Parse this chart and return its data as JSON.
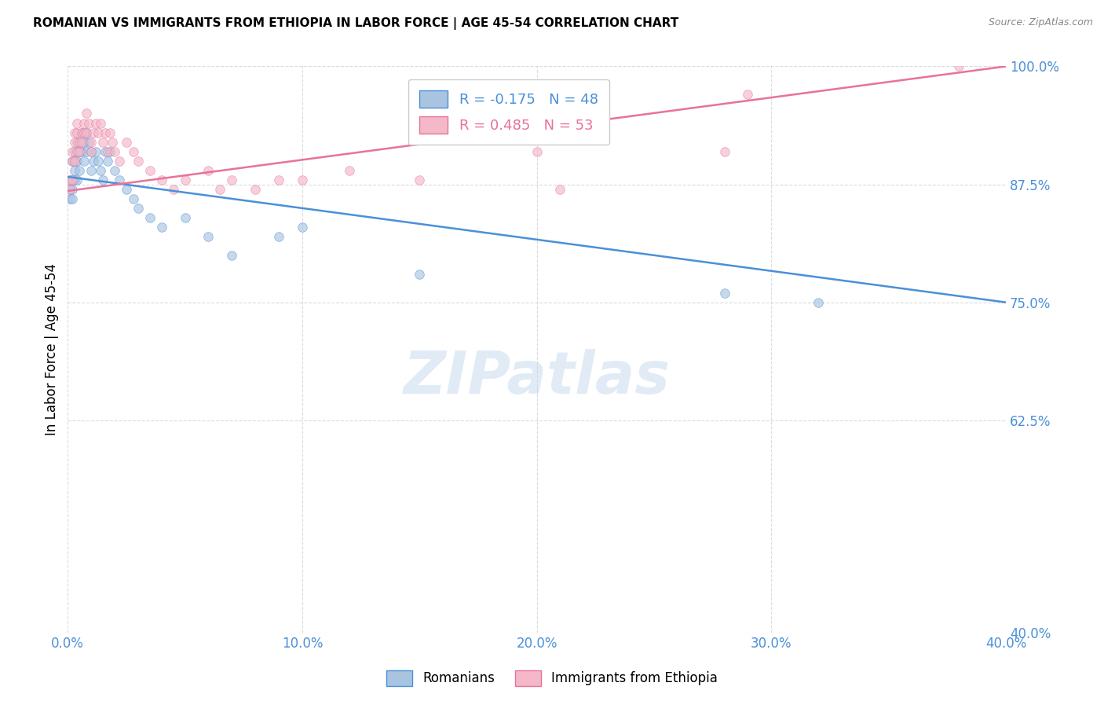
{
  "title": "ROMANIAN VS IMMIGRANTS FROM ETHIOPIA IN LABOR FORCE | AGE 45-54 CORRELATION CHART",
  "source": "Source: ZipAtlas.com",
  "ylabel": "In Labor Force | Age 45-54",
  "xlim": [
    0.0,
    0.4
  ],
  "ylim": [
    0.4,
    1.0
  ],
  "yticks": [
    0.4,
    0.625,
    0.75,
    0.875,
    1.0
  ],
  "xticks": [
    0.0,
    0.1,
    0.2,
    0.3,
    0.4
  ],
  "watermark": "ZIPatlas",
  "blue_color": "#4a90d9",
  "pink_color": "#e8729a",
  "blue_scatter_color": "#a8c4e0",
  "pink_scatter_color": "#f4b8c8",
  "scatter_alpha": 0.65,
  "scatter_size": 70,
  "R_rom": -0.175,
  "N_rom": 48,
  "R_eth": 0.485,
  "N_eth": 53,
  "rom_line_x": [
    0.0,
    0.4
  ],
  "rom_line_y": [
    0.883,
    0.75
  ],
  "eth_line_x": [
    0.0,
    0.4
  ],
  "eth_line_y": [
    0.868,
    1.0
  ],
  "romanian_x": [
    0.001,
    0.001,
    0.001,
    0.002,
    0.002,
    0.002,
    0.002,
    0.003,
    0.003,
    0.003,
    0.003,
    0.004,
    0.004,
    0.004,
    0.005,
    0.005,
    0.006,
    0.006,
    0.007,
    0.007,
    0.008,
    0.008,
    0.009,
    0.01,
    0.01,
    0.011,
    0.012,
    0.013,
    0.014,
    0.015,
    0.016,
    0.017,
    0.018,
    0.02,
    0.022,
    0.025,
    0.028,
    0.03,
    0.035,
    0.04,
    0.05,
    0.06,
    0.07,
    0.09,
    0.1,
    0.15,
    0.28,
    0.32
  ],
  "romanian_y": [
    0.88,
    0.87,
    0.86,
    0.9,
    0.88,
    0.87,
    0.86,
    0.91,
    0.9,
    0.89,
    0.88,
    0.92,
    0.9,
    0.88,
    0.91,
    0.89,
    0.93,
    0.91,
    0.92,
    0.9,
    0.93,
    0.91,
    0.92,
    0.91,
    0.89,
    0.9,
    0.91,
    0.9,
    0.89,
    0.88,
    0.91,
    0.9,
    0.91,
    0.89,
    0.88,
    0.87,
    0.86,
    0.85,
    0.84,
    0.83,
    0.84,
    0.82,
    0.8,
    0.82,
    0.83,
    0.78,
    0.76,
    0.75
  ],
  "ethiopia_x": [
    0.001,
    0.001,
    0.002,
    0.002,
    0.002,
    0.003,
    0.003,
    0.003,
    0.004,
    0.004,
    0.004,
    0.005,
    0.005,
    0.006,
    0.006,
    0.007,
    0.007,
    0.008,
    0.008,
    0.009,
    0.01,
    0.01,
    0.011,
    0.012,
    0.013,
    0.014,
    0.015,
    0.016,
    0.017,
    0.018,
    0.019,
    0.02,
    0.022,
    0.025,
    0.028,
    0.03,
    0.035,
    0.04,
    0.045,
    0.05,
    0.06,
    0.065,
    0.07,
    0.08,
    0.09,
    0.1,
    0.12,
    0.15,
    0.2,
    0.21,
    0.28,
    0.29,
    0.38
  ],
  "ethiopia_y": [
    0.88,
    0.87,
    0.91,
    0.9,
    0.88,
    0.93,
    0.92,
    0.9,
    0.94,
    0.93,
    0.91,
    0.92,
    0.91,
    0.93,
    0.92,
    0.94,
    0.93,
    0.95,
    0.93,
    0.94,
    0.92,
    0.91,
    0.93,
    0.94,
    0.93,
    0.94,
    0.92,
    0.93,
    0.91,
    0.93,
    0.92,
    0.91,
    0.9,
    0.92,
    0.91,
    0.9,
    0.89,
    0.88,
    0.87,
    0.88,
    0.89,
    0.87,
    0.88,
    0.87,
    0.88,
    0.88,
    0.89,
    0.88,
    0.91,
    0.87,
    0.91,
    0.97,
    1.0
  ]
}
